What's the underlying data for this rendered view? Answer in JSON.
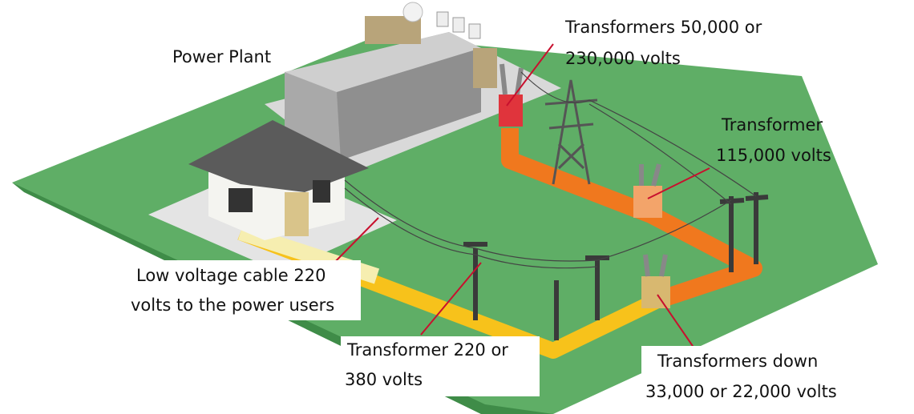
{
  "labels": [
    {
      "lines": [
        "Power Plant"
      ]
    },
    {
      "lines": [
        "Transformers 50,000 or",
        "230,000 volts"
      ]
    },
    {
      "lines": [
        "Transformer",
        "115,000 volts"
      ]
    },
    {
      "lines": [
        "Low voltage cable 220",
        "volts to the power users"
      ]
    },
    {
      "lines": [
        "Transformer 220 or",
        "380 volts"
      ]
    },
    {
      "lines": [
        "Transformers down",
        "33,000 or 22,000 volts"
      ]
    }
  ]
}
